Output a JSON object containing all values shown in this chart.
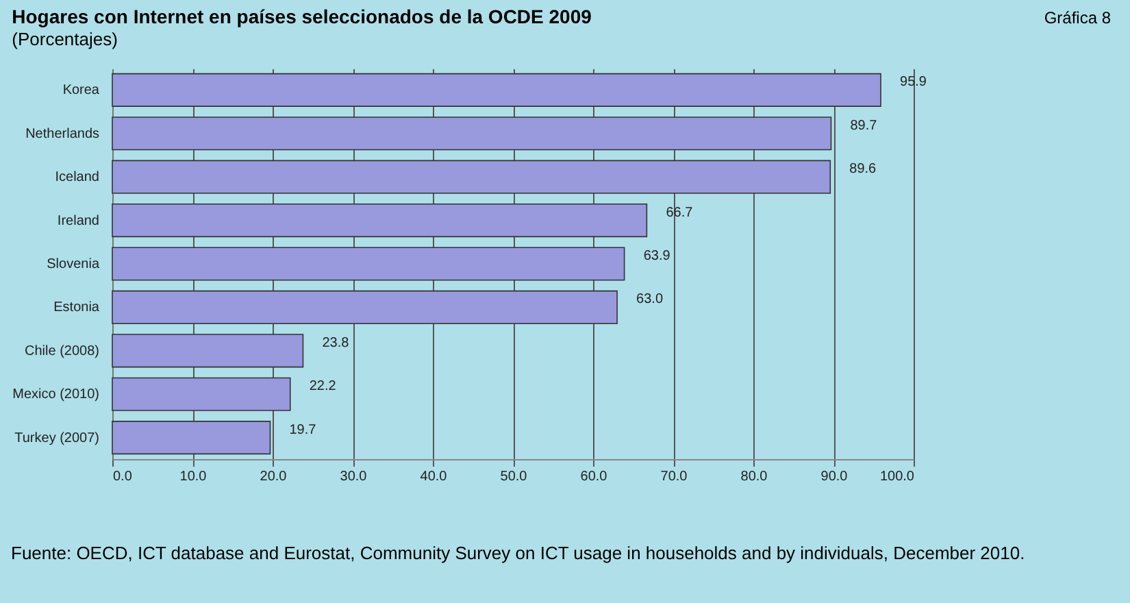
{
  "chart_data": {
    "type": "bar",
    "orientation": "horizontal",
    "title": "Hogares con Internet en países seleccionados de la OCDE 2009",
    "subtitle": "(Porcentajes)",
    "annotations": [
      "Gráfica 8",
      "Fuente: OECD, ICT database and Eurostat, Community Survey on ICT usage in households and by individuals, December 2010."
    ],
    "categories": [
      "Korea",
      "Netherlands",
      "Iceland",
      "Ireland",
      "Slovenia",
      "Estonia",
      "Chile (2008)",
      "Mexico (2010)",
      "Turkey (2007)"
    ],
    "values": [
      95.9,
      89.7,
      89.6,
      66.7,
      63.9,
      63.0,
      23.8,
      22.2,
      19.7
    ],
    "value_labels": [
      "95.9",
      "89.7",
      "89.6",
      "66.7",
      "63.9",
      "63.0",
      "23.8",
      "22.2",
      "19.7"
    ],
    "color": "#9999dd",
    "xlim": [
      0,
      100
    ],
    "xticks": [
      {
        "value": 0,
        "label": "0.0"
      },
      {
        "value": 10,
        "label": "10.0"
      },
      {
        "value": 20,
        "label": "20.0"
      },
      {
        "value": 30,
        "label": "30.0"
      },
      {
        "value": 40,
        "label": "40.0"
      },
      {
        "value": 50,
        "label": "50.0"
      },
      {
        "value": 60,
        "label": "60.0"
      },
      {
        "value": 70,
        "label": "70.0"
      },
      {
        "value": 80,
        "label": "80.0"
      },
      {
        "value": 90,
        "label": "90.0"
      },
      {
        "value": 100,
        "label": "100.0"
      }
    ],
    "grid": "x"
  }
}
